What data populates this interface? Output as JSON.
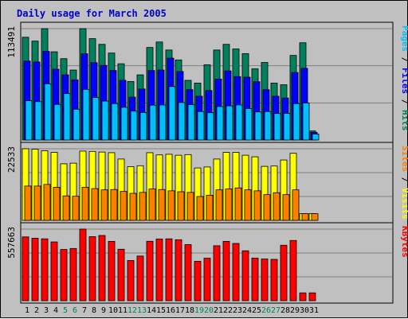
{
  "chart_data": {
    "type": "bar",
    "title": "Daily usage for March 2005",
    "categories": [
      "1",
      "2",
      "3",
      "4",
      "5",
      "6",
      "7",
      "8",
      "9",
      "10",
      "11",
      "12",
      "13",
      "14",
      "15",
      "16",
      "17",
      "18",
      "19",
      "20",
      "21",
      "22",
      "23",
      "24",
      "25",
      "26",
      "27",
      "28",
      "29",
      "30",
      "31"
    ],
    "weekend_days": [
      "5",
      "6",
      "12",
      "13",
      "19",
      "20",
      "26",
      "27"
    ],
    "panels": [
      {
        "name": "hits-files-pages",
        "max_label": "113491",
        "ymax": 113491,
        "right_labels": [
          {
            "text": "Pages",
            "color": "#00bfff"
          },
          {
            "text": " / ",
            "color": "#000000"
          },
          {
            "text": "Files",
            "color": "#0000ff"
          },
          {
            "text": " / ",
            "color": "#000000"
          },
          {
            "text": "Hits",
            "color": "#00805c"
          }
        ],
        "series": [
          {
            "name": "Hits",
            "color": "#00805c",
            "values": [
              104700,
              100800,
              113491,
              89900,
              82900,
              71300,
              113491,
              103300,
              97500,
              88600,
              77700,
              59600,
              66400,
              94300,
              99900,
              91700,
              81600,
              60800,
              58000,
              76700,
              91700,
              97500,
              92800,
              88000,
              72500,
              79000,
              58000,
              56300,
              86200,
              99100,
              9300
            ]
          },
          {
            "name": "Files",
            "color": "#0000ff",
            "values": [
              80400,
              79500,
              90300,
              72100,
              66400,
              61300,
              87900,
              78800,
              76000,
              70800,
              60800,
              43700,
              52000,
              70800,
              71300,
              83400,
              69800,
              51300,
              44600,
              50400,
              62100,
              70400,
              64600,
              64000,
              59400,
              51200,
              44600,
              42800,
              68800,
              73000,
              7800
            ]
          },
          {
            "name": "Pages",
            "color": "#00bfff",
            "values": [
              40100,
              39100,
              57300,
              36300,
              47300,
              31400,
              51600,
              43400,
              39700,
              37100,
              33300,
              29400,
              28000,
              35500,
              35700,
              54500,
              38200,
              36100,
              29000,
              27800,
              34100,
              34800,
              35700,
              32100,
              28600,
              29000,
              27000,
              27200,
              37100,
              37700,
              6100
            ]
          }
        ]
      },
      {
        "name": "visits-sites",
        "max_label": "22533",
        "ymax": 22533,
        "right_labels": [
          {
            "text": "Sites",
            "color": "#ff8000"
          },
          {
            "text": " / ",
            "color": "#000000"
          },
          {
            "text": "Visits",
            "color": "#ffff00"
          }
        ],
        "series": [
          {
            "name": "Visits",
            "color": "#ffff00",
            "values": [
              22533,
              22400,
              21900,
              21400,
              17800,
              18000,
              21800,
              21700,
              21500,
              21300,
              19300,
              16900,
              17200,
              21300,
              20600,
              20800,
              20500,
              20700,
              16500,
              16800,
              19300,
              21400,
              21400,
              20500,
              20000,
              17000,
              17100,
              19000,
              21100,
              2100,
              2100
            ]
          },
          {
            "name": "Sites",
            "color": "#ff8000",
            "values": [
              10800,
              10800,
              11300,
              10400,
              7700,
              7600,
              10400,
              10000,
              9600,
              9700,
              9100,
              8500,
              8800,
              9900,
              9700,
              9300,
              9000,
              8800,
              7500,
              7900,
              9600,
              9900,
              10200,
              9600,
              9300,
              8100,
              8700,
              8100,
              9600,
              2100,
              2100
            ]
          }
        ]
      },
      {
        "name": "kbytes",
        "max_label": "557663",
        "ymax": 557663,
        "right_labels": [
          {
            "text": "KBytes",
            "color": "#ff0000"
          }
        ],
        "series": [
          {
            "name": "KBytes",
            "color": "#ff0000",
            "values": [
              497000,
              487000,
              482000,
              458000,
              399000,
              407000,
              557663,
              499000,
              508000,
              462000,
              401000,
              313000,
              348000,
              463000,
              480000,
              482000,
              475000,
              437000,
              307000,
              331000,
              428000,
              462000,
              446000,
              389000,
              332000,
              325000,
              322000,
              432000,
              469000,
              61000,
              61000
            ]
          }
        ]
      }
    ]
  }
}
